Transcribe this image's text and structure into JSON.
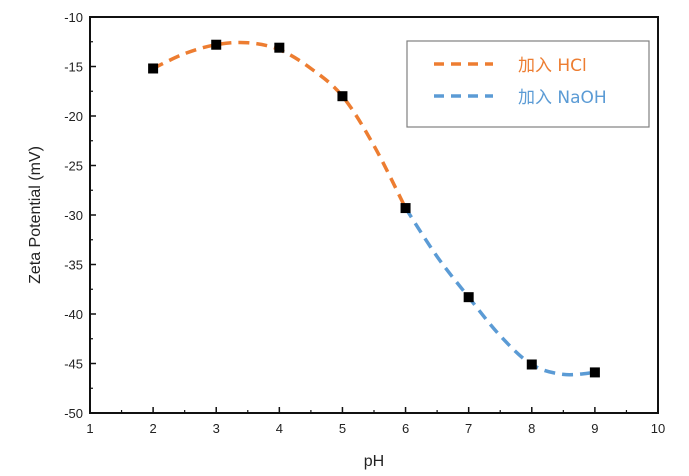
{
  "chart_data": {
    "type": "scatter",
    "title": "",
    "xlabel": "pH",
    "ylabel": "Zeta Potential (mV)",
    "xlim": [
      1,
      10
    ],
    "ylim": [
      -50,
      -10
    ],
    "x_ticks": [
      1,
      2,
      3,
      4,
      5,
      6,
      7,
      8,
      9,
      10
    ],
    "y_ticks": [
      -10,
      -15,
      -20,
      -25,
      -30,
      -35,
      -40,
      -45,
      -50
    ],
    "grid": false,
    "legend_position": "upper right",
    "points": {
      "x": [
        2,
        3,
        4,
        5,
        6,
        7,
        8,
        9
      ],
      "y": [
        -15.2,
        -12.8,
        -13.1,
        -18.0,
        -29.3,
        -38.3,
        -45.1,
        -45.9
      ],
      "marker": "square",
      "color": "#000000"
    },
    "series": [
      {
        "name": "加入 HCl",
        "style": "dashed",
        "color": "#ED7D31",
        "x": [
          2,
          2.5,
          3,
          3.5,
          4,
          4.5,
          5,
          5.5,
          6
        ],
        "y": [
          -15.2,
          -13.7,
          -12.8,
          -12.6,
          -13.3,
          -15.2,
          -18.0,
          -23.0,
          -29.3
        ]
      },
      {
        "name": "加入 NaOH",
        "style": "dashed",
        "color": "#5B9BD5",
        "x": [
          6,
          6.5,
          7,
          7.5,
          8,
          8.5,
          9
        ],
        "y": [
          -29.3,
          -34.2,
          -38.3,
          -42.2,
          -45.1,
          -46.1,
          -45.9
        ]
      }
    ]
  },
  "axes": {
    "xlabel": "pH",
    "ylabel": "Zeta Potential (mV)",
    "x_tick_labels": [
      "1",
      "2",
      "3",
      "4",
      "5",
      "6",
      "7",
      "8",
      "9",
      "10"
    ],
    "y_tick_labels": [
      "-10",
      "-15",
      "-20",
      "-25",
      "-30",
      "-35",
      "-40",
      "-45",
      "-50"
    ]
  },
  "legend": {
    "items": [
      {
        "label": "加入 HCl",
        "color": "#ED7D31"
      },
      {
        "label": "加入 NaOH",
        "color": "#5B9BD5"
      }
    ]
  }
}
